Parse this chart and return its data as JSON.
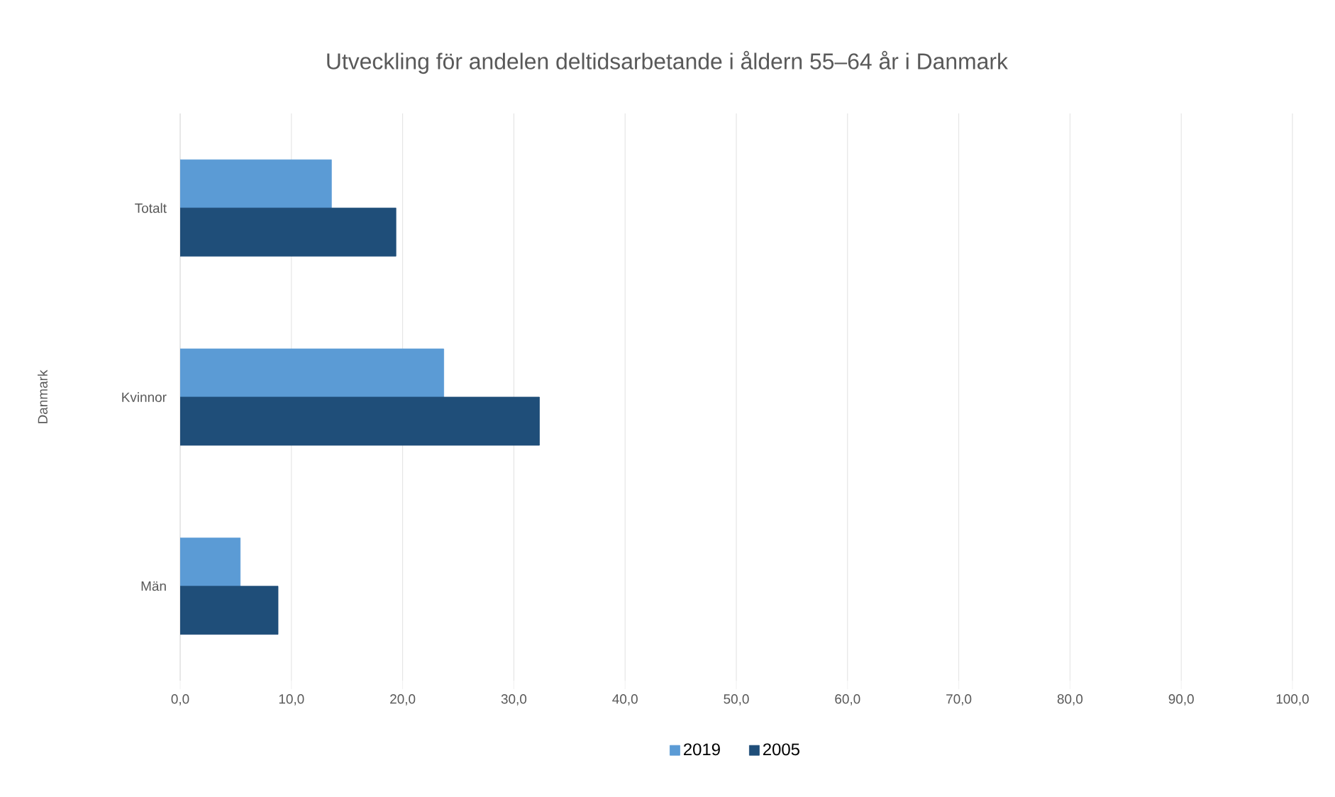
{
  "chart_data": {
    "type": "bar",
    "orientation": "horizontal",
    "title": "Utveckling för andelen deltidsarbetande i åldern 55–64 år i Danmark",
    "annotations": [
      "Danmark"
    ],
    "categories": [
      "Totalt",
      "Kvinnor",
      "Män"
    ],
    "series": [
      {
        "name": "2019",
        "color": "#5b9bd5",
        "values": [
          13.6,
          23.7,
          5.4
        ]
      },
      {
        "name": "2005",
        "color": "#1f4e79",
        "values": [
          19.4,
          32.3,
          8.8
        ]
      }
    ],
    "xlim": [
      0,
      100
    ],
    "xticks": [
      {
        "value": 0,
        "label": "0,0"
      },
      {
        "value": 10,
        "label": "10,0"
      },
      {
        "value": 20,
        "label": "20,0"
      },
      {
        "value": 30,
        "label": "30,0"
      },
      {
        "value": 40,
        "label": "40,0"
      },
      {
        "value": 50,
        "label": "50,0"
      },
      {
        "value": 60,
        "label": "60,0"
      },
      {
        "value": 70,
        "label": "70,0"
      },
      {
        "value": 80,
        "label": "80,0"
      },
      {
        "value": 90,
        "label": "90,0"
      },
      {
        "value": 100,
        "label": "100,0"
      }
    ],
    "grid": "x",
    "legend": "bottom"
  }
}
